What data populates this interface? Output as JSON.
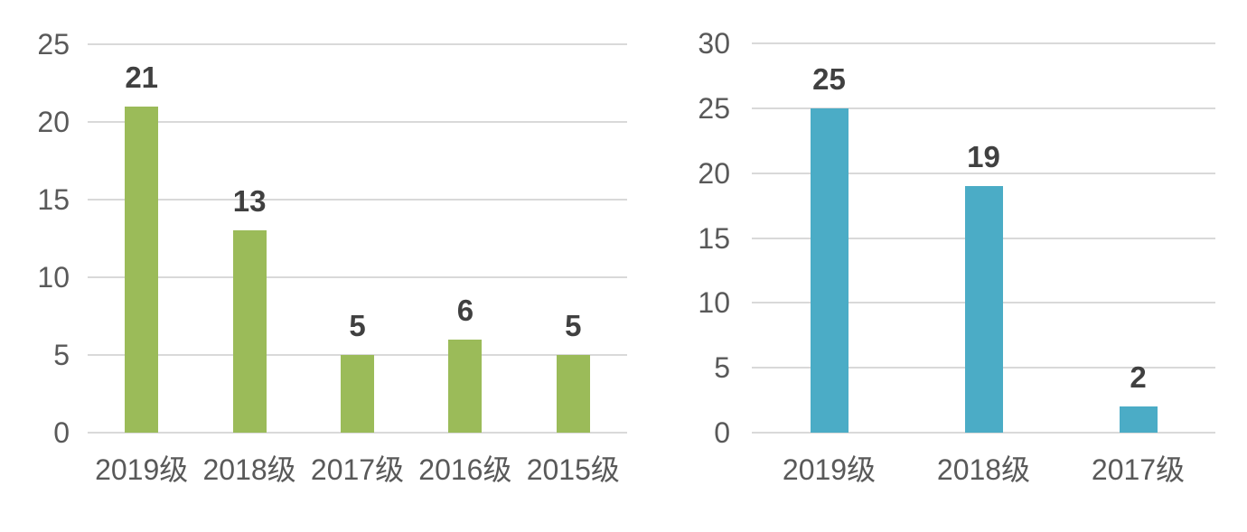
{
  "chart_data": [
    {
      "type": "bar",
      "title": "",
      "xlabel": "",
      "ylabel": "",
      "categories": [
        "2019级",
        "2018级",
        "2017级",
        "2016级",
        "2015级"
      ],
      "values": [
        21,
        13,
        5,
        6,
        5
      ],
      "yticks": [
        0,
        5,
        10,
        15,
        20,
        25
      ],
      "ylim": [
        0,
        25
      ],
      "grid": true,
      "legend": false,
      "bar_color": "#9BBB59"
    },
    {
      "type": "bar",
      "title": "",
      "xlabel": "",
      "ylabel": "",
      "categories": [
        "2019级",
        "2018级",
        "2017级"
      ],
      "values": [
        25,
        19,
        2
      ],
      "yticks": [
        0,
        5,
        10,
        15,
        20,
        25,
        30
      ],
      "ylim": [
        0,
        30
      ],
      "grid": true,
      "legend": false,
      "bar_color": "#4BACC6"
    }
  ],
  "style_colors": {
    "axis_labels": "#595959",
    "value_labels": "#404040",
    "gridlines": "#D9D9D9",
    "background": "#FFFFFF"
  }
}
